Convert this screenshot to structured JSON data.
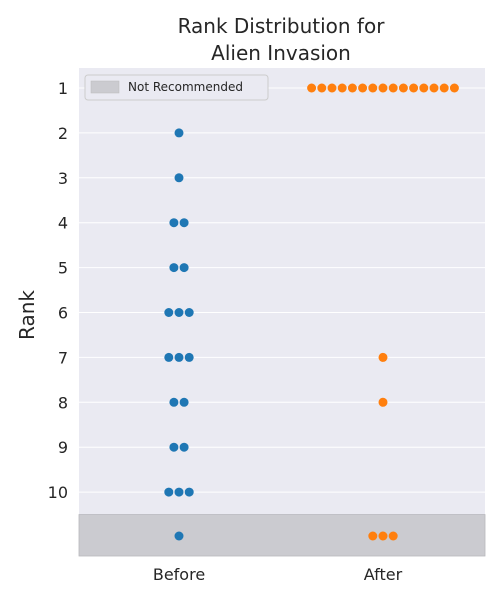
{
  "chart_data": {
    "type": "scatter",
    "title_lines": [
      "Rank Distribution for",
      "Alien Invasion"
    ],
    "ylabel": "Rank",
    "xlabel": "",
    "categories": [
      "Before",
      "After"
    ],
    "y_ticks": [
      "1",
      "2",
      "3",
      "4",
      "5",
      "6",
      "7",
      "8",
      "9",
      "10"
    ],
    "y_range": [
      0.5,
      11.5
    ],
    "y_inverted": true,
    "grid": true,
    "legend": {
      "position": "top-left",
      "entries": [
        "Not Recommended"
      ]
    },
    "not_recommended_region": {
      "from_y": 10.5,
      "to_y": 11.5,
      "color": "#cbcbd0"
    },
    "series": [
      {
        "category": "Before",
        "color": "#1f77b4",
        "counts_by_rank": {
          "1": 0,
          "2": 1,
          "3": 1,
          "4": 2,
          "5": 2,
          "6": 3,
          "7": 3,
          "8": 2,
          "9": 2,
          "10": 3
        },
        "not_recommended_count": 1
      },
      {
        "category": "After",
        "color": "#ff7f0e",
        "counts_by_rank": {
          "1": 15,
          "2": 0,
          "3": 0,
          "4": 0,
          "5": 0,
          "6": 0,
          "7": 1,
          "8": 1,
          "9": 0,
          "10": 0
        },
        "not_recommended_count": 3
      }
    ]
  },
  "colors": {
    "axes_bg": "#eaeaf2",
    "grid": "#ffffff",
    "text": "#262626"
  }
}
